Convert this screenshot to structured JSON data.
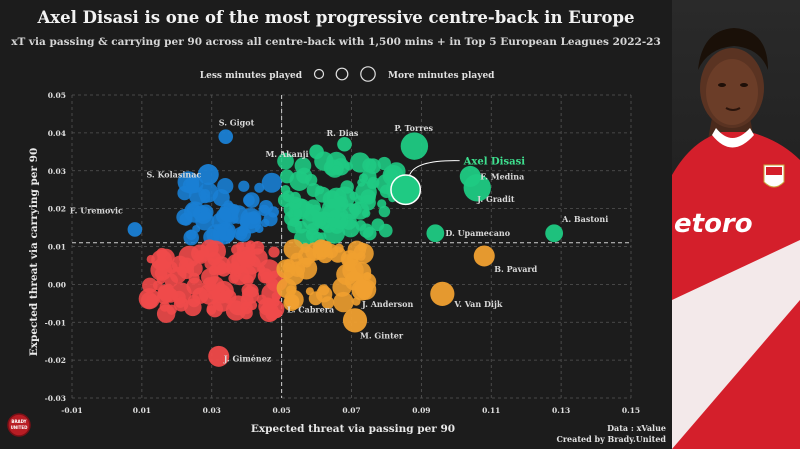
{
  "chart_data": {
    "type": "scatter",
    "title": "Axel Disasi is one of the most progressive centre-back in Europe",
    "subtitle": "xT via passing & carrying per 90 across all centre-back with 1,500 mins + in Top 5 European Leagues 2022-23",
    "xlabel": "Expected threat via passing per 90",
    "ylabel": "Expected threat via carrying per 90",
    "xlim": [
      -0.01,
      0.15
    ],
    "ylim": [
      -0.03,
      0.05
    ],
    "xticks": [
      "-0.01",
      "0.01",
      "0.03",
      "0.05",
      "0.07",
      "0.09",
      "0.11",
      "0.13",
      "0.15"
    ],
    "yticks": [
      "-0.03",
      "-0.02",
      "-0.01",
      "0.00",
      "0.01",
      "0.02",
      "0.03",
      "0.04",
      "0.05"
    ],
    "mean_x": 0.05,
    "mean_y": 0.011,
    "size_legend": {
      "left": "Less minutes played",
      "right": "More minutes played"
    },
    "colors": {
      "high_carry_low_pass": "#1a7fd4",
      "high_both": "#1fca83",
      "low_both": "#f04a4a",
      "low_carry_high_pass": "#f0a030",
      "highlight": "#ffffff",
      "label": "#d8d8d8",
      "highlight_label": "#3ee08f"
    },
    "labeled_points": [
      {
        "name": "S. Gigot",
        "x": 0.034,
        "y": 0.039,
        "size": 3,
        "quadrant": "high_carry_low_pass"
      },
      {
        "name": "S. Kolasinac",
        "x": 0.029,
        "y": 0.029,
        "size": 5,
        "quadrant": "high_carry_low_pass"
      },
      {
        "name": "F. Uremovic",
        "x": 0.008,
        "y": 0.0145,
        "size": 3,
        "quadrant": "high_carry_low_pass"
      },
      {
        "name": "R. Dias",
        "x": 0.068,
        "y": 0.037,
        "size": 3,
        "quadrant": "high_both"
      },
      {
        "name": "M. Akanji",
        "x": 0.06,
        "y": 0.035,
        "size": 3,
        "quadrant": "high_both"
      },
      {
        "name": "P. Torres",
        "x": 0.088,
        "y": 0.0365,
        "size": 7,
        "quadrant": "high_both"
      },
      {
        "name": "Axel Disasi",
        "x": 0.0855,
        "y": 0.025,
        "size": 7,
        "quadrant": "highlight"
      },
      {
        "name": "F. Medina",
        "x": 0.104,
        "y": 0.0285,
        "size": 5,
        "quadrant": "high_both"
      },
      {
        "name": "J. Gradit",
        "x": 0.106,
        "y": 0.0255,
        "size": 7,
        "quadrant": "high_both"
      },
      {
        "name": "A. Bastoni",
        "x": 0.128,
        "y": 0.0135,
        "size": 4,
        "quadrant": "high_both"
      },
      {
        "name": "D. Upamecano",
        "x": 0.094,
        "y": 0.0135,
        "size": 4,
        "quadrant": "high_both"
      },
      {
        "name": "B. Pavard",
        "x": 0.108,
        "y": 0.0075,
        "size": 5,
        "quadrant": "low_carry_high_pass"
      },
      {
        "name": "J. Anderson",
        "x": 0.073,
        "y": -0.0015,
        "size": 5,
        "quadrant": "low_carry_high_pass"
      },
      {
        "name": "V. Van Dijk",
        "x": 0.096,
        "y": -0.0025,
        "size": 6,
        "quadrant": "low_carry_high_pass"
      },
      {
        "name": "L. Cabrera",
        "x": 0.053,
        "y": -0.0045,
        "size": 3,
        "quadrant": "low_carry_high_pass"
      },
      {
        "name": "M. Ginter",
        "x": 0.071,
        "y": -0.0095,
        "size": 6,
        "quadrant": "low_carry_high_pass"
      },
      {
        "name": "J. Giménez",
        "x": 0.032,
        "y": -0.019,
        "size": 5,
        "quadrant": "low_both"
      }
    ]
  },
  "footer": {
    "data_source": "Data : xValue",
    "created_by": "Created by Brady.United",
    "logo_text": "BRADY UNITED"
  }
}
